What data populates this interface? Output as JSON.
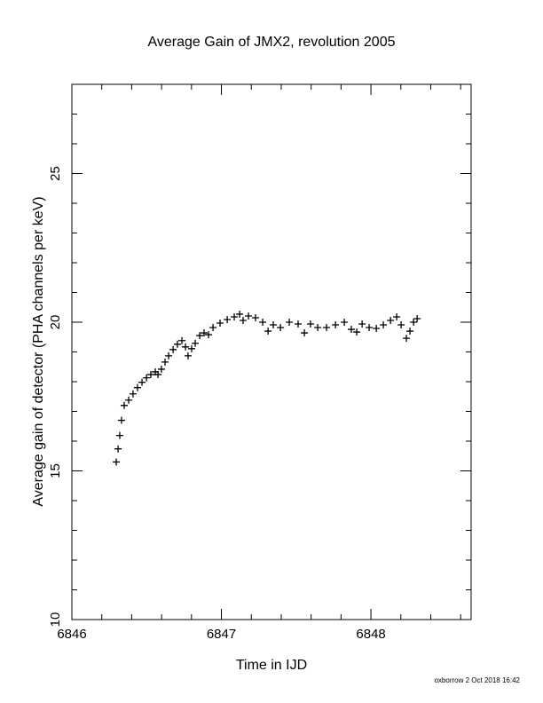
{
  "chart_data": {
    "type": "scatter",
    "title": "Average Gain of JMX2, revolution 2005",
    "xlabel": "Time in IJD",
    "ylabel": "Average gain of detector (PHA channels per keV)",
    "footer": "oxborrow  2  Oct  2018 16:42",
    "marker": "+",
    "color": "#000000",
    "xlim": [
      6846,
      6848.67
    ],
    "ylim": [
      10,
      28
    ],
    "xticks": [
      6846,
      6847,
      6848
    ],
    "yticks": [
      10,
      15,
      20,
      25
    ],
    "xminorticks": [
      6846.2,
      6846.4,
      6846.6,
      6846.8,
      6847.2,
      6847.4,
      6847.6,
      6847.8,
      6848.2,
      6848.4,
      6848.6
    ],
    "yminorticks": [
      11,
      12,
      13,
      14,
      16,
      17,
      18,
      19,
      21,
      22,
      23,
      24,
      26,
      27
    ],
    "x": [
      6846.297,
      6846.309,
      6846.32,
      6846.332,
      6846.35,
      6846.38,
      6846.409,
      6846.439,
      6846.469,
      6846.499,
      6846.528,
      6846.558,
      6846.576,
      6846.599,
      6846.623,
      6846.647,
      6846.677,
      6846.706,
      6846.736,
      6846.76,
      6846.777,
      6846.801,
      6846.825,
      6846.855,
      6846.884,
      6846.914,
      6846.944,
      6846.991,
      6847.039,
      6847.086,
      6847.122,
      6847.145,
      6847.181,
      6847.228,
      6847.276,
      6847.312,
      6847.347,
      6847.395,
      6847.454,
      6847.513,
      6847.555,
      6847.596,
      6847.644,
      6847.703,
      6847.763,
      6847.822,
      6847.869,
      6847.905,
      6847.941,
      6847.988,
      6848.036,
      6848.083,
      6848.131,
      6848.172,
      6848.202,
      6848.237,
      6848.261,
      6848.285,
      6848.309
    ],
    "y": [
      15.3,
      15.74,
      16.19,
      16.7,
      17.2,
      17.38,
      17.59,
      17.8,
      17.98,
      18.13,
      18.24,
      18.33,
      18.24,
      18.42,
      18.66,
      18.87,
      19.08,
      19.26,
      19.38,
      19.17,
      18.87,
      19.11,
      19.29,
      19.55,
      19.64,
      19.58,
      19.82,
      19.97,
      20.09,
      20.18,
      20.27,
      20.06,
      20.21,
      20.15,
      20.0,
      19.7,
      19.91,
      19.82,
      20.0,
      19.94,
      19.64,
      19.94,
      19.82,
      19.82,
      19.91,
      20.0,
      19.76,
      19.67,
      19.94,
      19.82,
      19.79,
      19.91,
      20.06,
      20.18,
      19.91,
      19.46,
      19.7,
      20.0,
      20.12
    ]
  }
}
